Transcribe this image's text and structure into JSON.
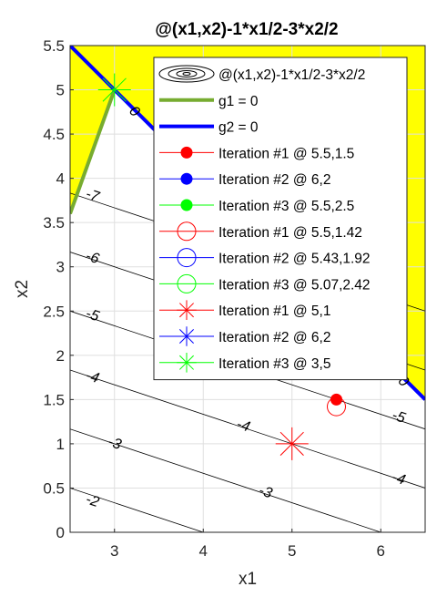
{
  "chart_data": {
    "type": "contour",
    "title": "@(x1,x2)-1*x1/2-3*x2/2",
    "xlabel": "x1",
    "ylabel": "x2",
    "xlim": [
      2.5,
      6.5
    ],
    "ylim": [
      0,
      5.5
    ],
    "xticks": [
      3,
      4,
      5,
      6
    ],
    "xtick_labels": [
      "3",
      "4",
      "5",
      "6"
    ],
    "yticks": [
      0,
      0.5,
      1,
      1.5,
      2,
      2.5,
      3,
      3.5,
      4,
      4.5,
      5,
      5.5
    ],
    "ytick_labels": [
      "0",
      "0.5",
      "1",
      "1.5",
      "2",
      "2.5",
      "3",
      "3.5",
      "4",
      "4.5",
      "5",
      "5.5"
    ],
    "grid": true,
    "legend_position": "top-right",
    "infeasible_fill_color": "#ffff00",
    "contour_line_color": "#000000",
    "contours": [
      {
        "level": -2,
        "label": "-2",
        "label_at": [
          2.75,
          0.35
        ]
      },
      {
        "level": -3,
        "label": "-3",
        "label_at": [
          3.0,
          1.0
        ]
      },
      {
        "level": -3,
        "label": "-3",
        "label_at": [
          4.7,
          0.45
        ]
      },
      {
        "level": -4,
        "label": "-4",
        "label_at": [
          2.75,
          1.75
        ]
      },
      {
        "level": -4,
        "label": "-4",
        "label_at": [
          4.45,
          1.2
        ]
      },
      {
        "level": -4,
        "label": "-4",
        "label_at": [
          6.2,
          0.6
        ]
      },
      {
        "level": -5,
        "label": "-5",
        "label_at": [
          2.75,
          2.45
        ]
      },
      {
        "level": -5,
        "label": "-5",
        "label_at": [
          4.45,
          1.85
        ]
      },
      {
        "level": -5,
        "label": "-5",
        "label_at": [
          6.2,
          1.3
        ]
      },
      {
        "level": -6,
        "label": "-6",
        "label_at": [
          2.75,
          3.1
        ]
      },
      {
        "level": -7,
        "label": "-7",
        "label_at": [
          2.75,
          3.8
        ]
      }
    ],
    "constraint_lines": [
      {
        "name": "g1 = 0",
        "color": "#77ac30",
        "x": [
          2.5,
          3.0
        ],
        "y": [
          3.6,
          5.0
        ],
        "labels": []
      },
      {
        "name": "g2 = 0",
        "color": "#0000ff",
        "x": [
          2.5,
          6.5
        ],
        "y": [
          5.5,
          1.5
        ],
        "labels": [
          {
            "text": "0",
            "at": [
              3.22,
              4.75
            ]
          },
          {
            "text": "0",
            "at": [
              6.25,
              1.7
            ]
          }
        ]
      }
    ],
    "series": [
      {
        "name": "@(x1,x2)-1*x1/2-3*x2/2",
        "type": "contour"
      },
      {
        "name": "g1 = 0",
        "type": "line",
        "color": "#77ac30"
      },
      {
        "name": "g2 = 0",
        "type": "line",
        "color": "#0000ff"
      },
      {
        "name": "Iteration #1 @ 5.5,1.5",
        "marker": "dot",
        "color": "#ff0000",
        "x": 5.5,
        "y": 1.5
      },
      {
        "name": "Iteration #2 @ 6,2",
        "marker": "dot",
        "color": "#0000ff",
        "x": 6,
        "y": 2
      },
      {
        "name": "Iteration #3 @ 5.5,2.5",
        "marker": "dot",
        "color": "#00ff00",
        "x": 5.5,
        "y": 2.5
      },
      {
        "name": "Iteration #1 @ 5.5,1.42",
        "marker": "circle",
        "color": "#ff0000",
        "x": 5.5,
        "y": 1.42
      },
      {
        "name": "Iteration #2 @ 5.43,1.92",
        "marker": "circle",
        "color": "#0000ff",
        "x": 5.43,
        "y": 1.92
      },
      {
        "name": "Iteration #3 @ 5.07,2.42",
        "marker": "circle",
        "color": "#00ff00",
        "x": 5.07,
        "y": 2.42
      },
      {
        "name": "Iteration #1 @ 5,1",
        "marker": "star",
        "color": "#ff0000",
        "x": 5,
        "y": 1
      },
      {
        "name": "Iteration #2 @ 6,2",
        "marker": "star",
        "color": "#0000ff",
        "x": 6,
        "y": 2
      },
      {
        "name": "Iteration #3 @ 3,5",
        "marker": "star",
        "color": "#00ff00",
        "x": 3,
        "y": 5
      }
    ]
  }
}
